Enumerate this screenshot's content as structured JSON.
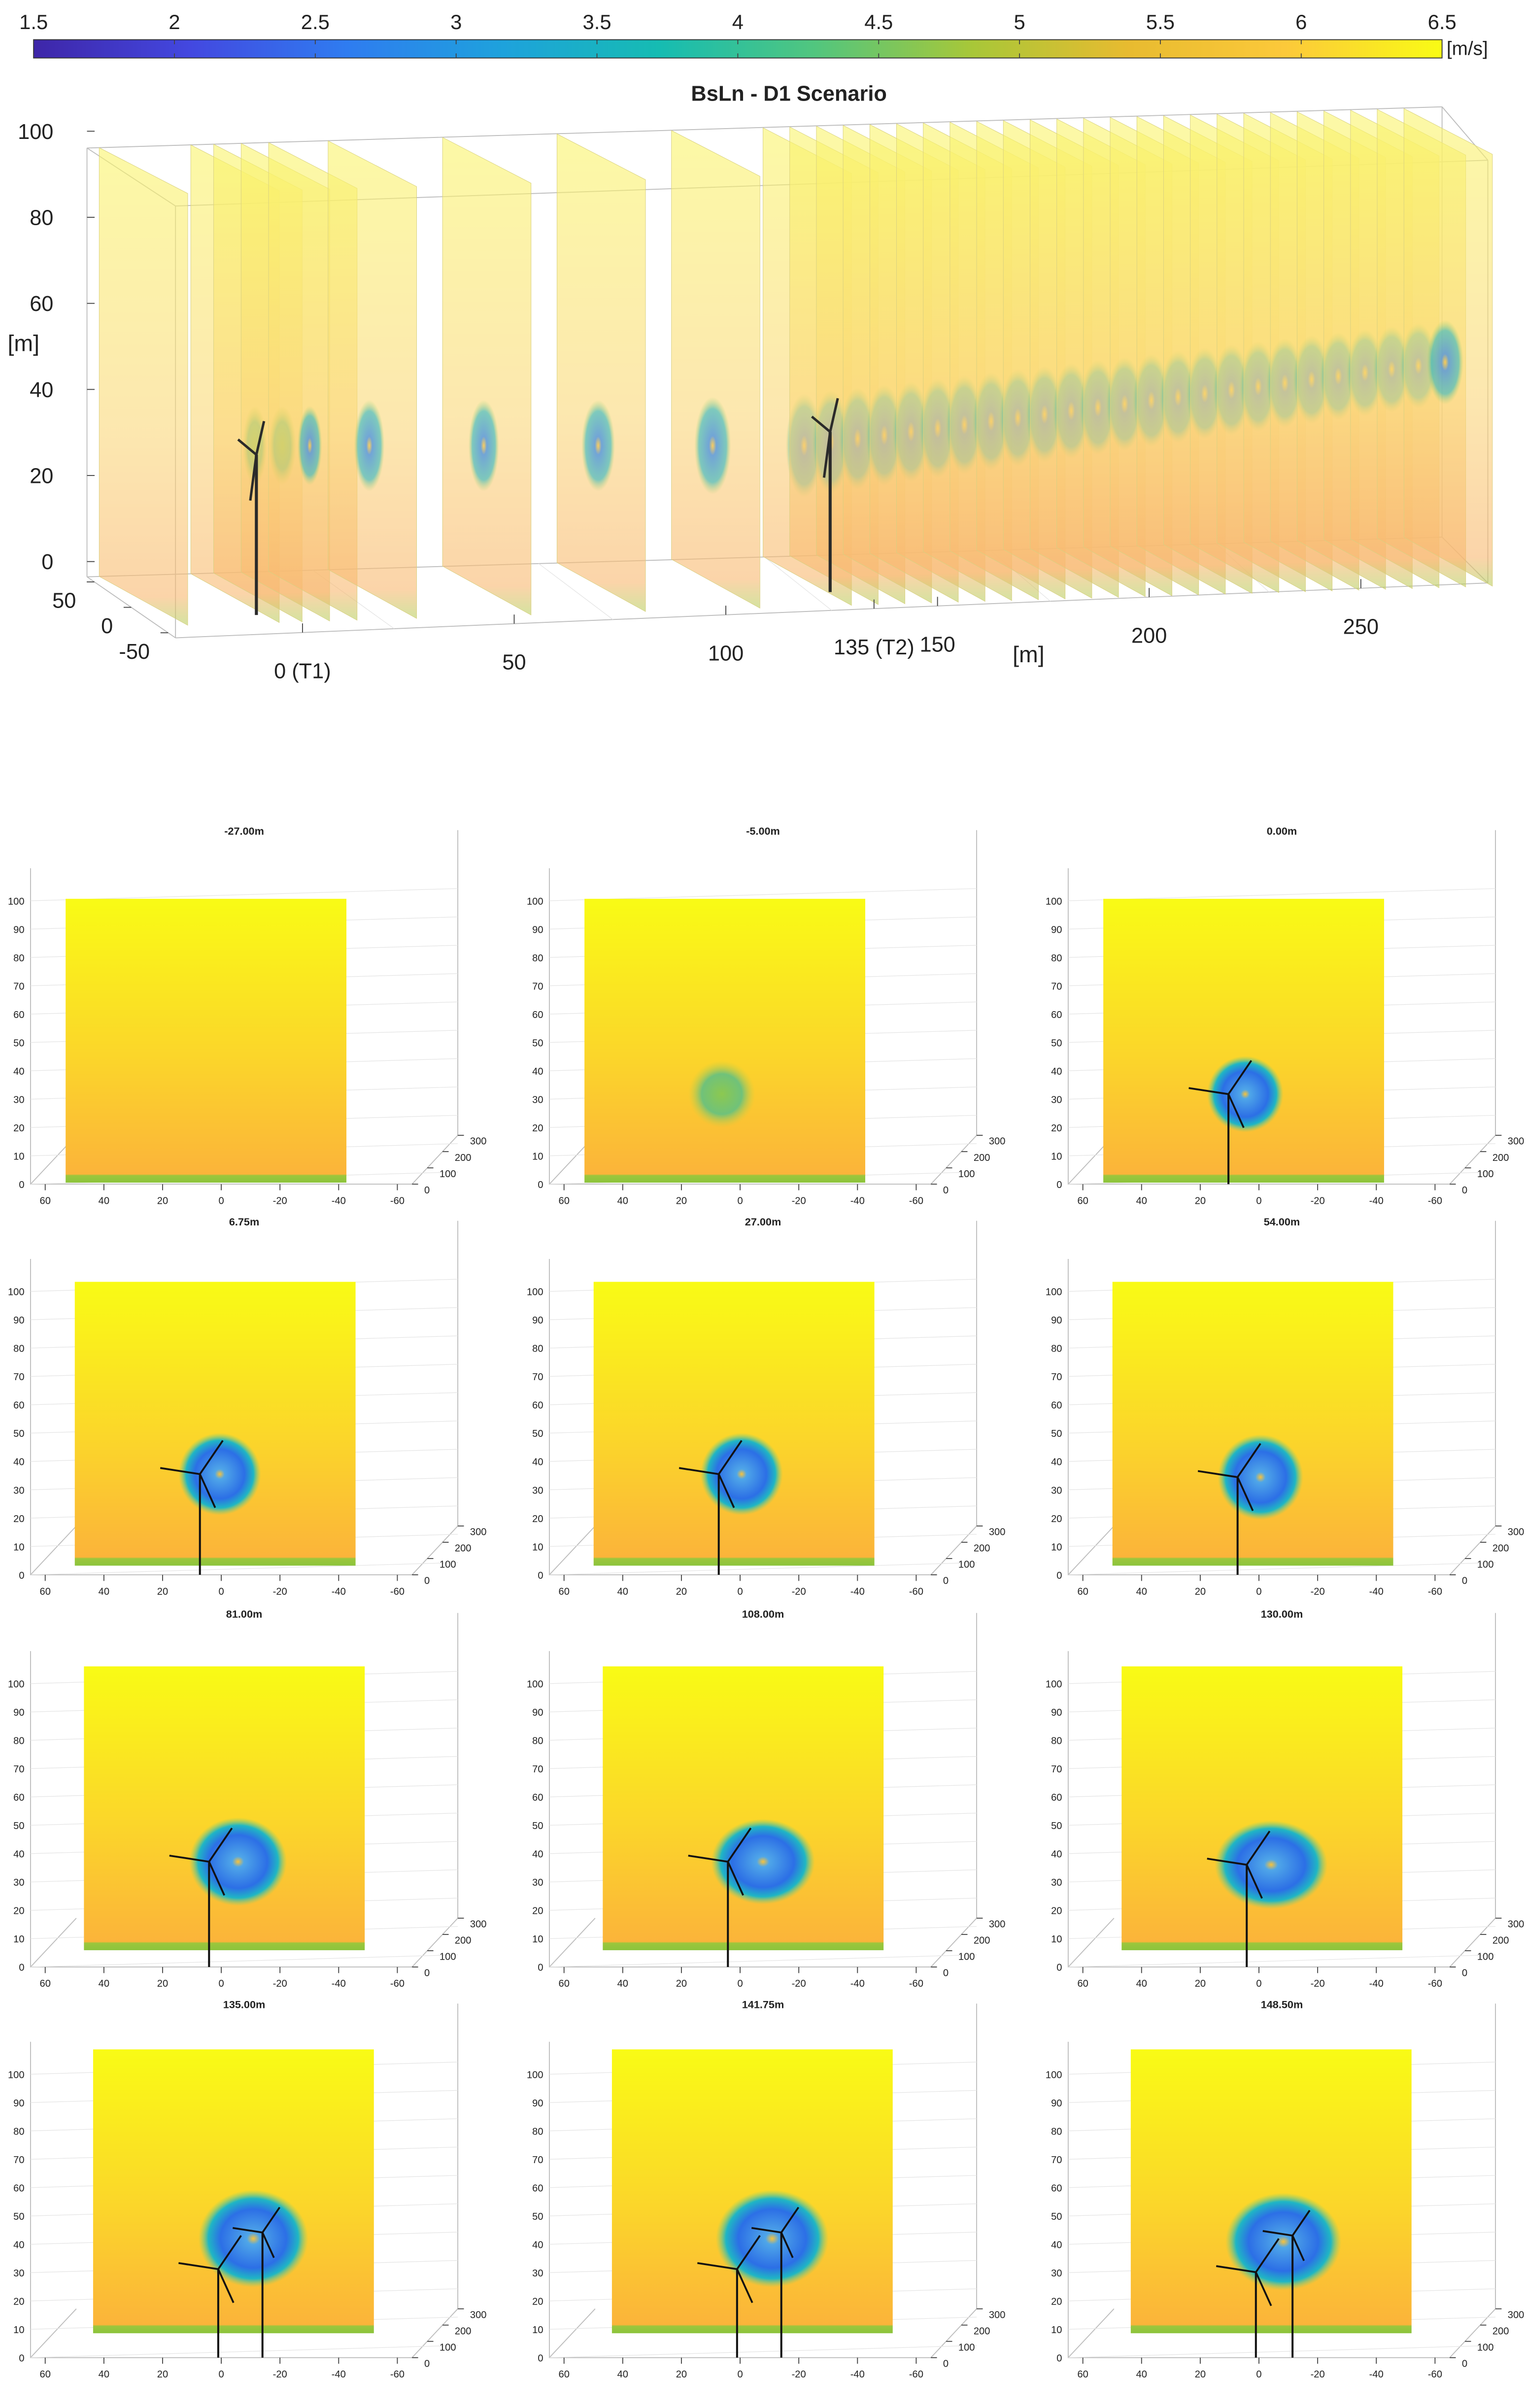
{
  "colorbar": {
    "ticks": [
      1.5,
      2,
      2.5,
      3,
      3.5,
      4,
      4.5,
      5,
      5.5,
      6,
      6.5
    ],
    "clim": [
      1.5,
      6.5
    ],
    "unit": "[m/s]",
    "colormap": [
      "#3e26a8",
      "#4348e0",
      "#2f7cf0",
      "#1ea2dc",
      "#16bcb2",
      "#52c67e",
      "#a8c738",
      "#e8bb30",
      "#fcc93a",
      "#f9fb15"
    ]
  },
  "main_plot": {
    "title": "BsLn - D1 Scenario",
    "y_label": "[m]",
    "x_label": "[m]",
    "ylim": [
      0,
      100
    ],
    "yticks": [
      0,
      20,
      40,
      60,
      80,
      100
    ],
    "xlim": [
      -30,
      280
    ],
    "xticks": [
      {
        "value": 0,
        "label": "0 (T1)"
      },
      50,
      100,
      {
        "value": 135,
        "label": "135 (T2)"
      },
      150,
      200,
      250
    ],
    "depth_lim": [
      -60,
      60
    ],
    "depth_ticks": [
      50,
      0,
      -50
    ]
  },
  "slice_axes": {
    "zlim": [
      0,
      105
    ],
    "zticks": [
      0,
      10,
      20,
      30,
      40,
      50,
      60,
      70,
      80,
      90,
      100
    ],
    "xlim": [
      65,
      -65
    ],
    "xticks": [
      60,
      40,
      20,
      0,
      -20,
      -40,
      -60
    ],
    "depth_ticks": [
      0,
      100,
      200,
      300
    ]
  },
  "slices": [
    {
      "title": "-27.00m"
    },
    {
      "title": "-5.00m"
    },
    {
      "title": "0.00m"
    },
    {
      "title": "6.75m"
    },
    {
      "title": "27.00m"
    },
    {
      "title": "54.00m"
    },
    {
      "title": "81.00m"
    },
    {
      "title": "108.00m"
    },
    {
      "title": "130.00m"
    },
    {
      "title": "135.00m"
    },
    {
      "title": "141.75m"
    },
    {
      "title": "148.50m"
    }
  ]
}
